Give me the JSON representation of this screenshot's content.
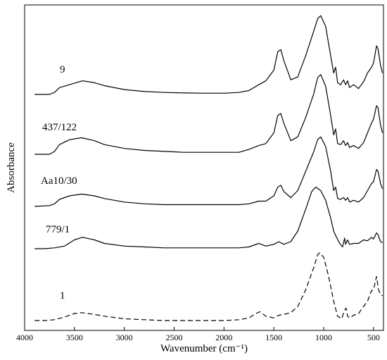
{
  "chart_data": {
    "type": "line",
    "xlabel": "Wavenumber (cm⁻¹)",
    "ylabel": "Absorbance",
    "xlim": [
      4000,
      400
    ],
    "x_reversed": true,
    "x_ticks": [
      4000,
      3500,
      3000,
      2500,
      2000,
      1500,
      1000,
      500
    ],
    "y_ticks_shown": false,
    "grid": false,
    "legend": "none",
    "series": [
      {
        "name": "9",
        "style": "solid",
        "points": [
          [
            3900,
            0.0
          ],
          [
            3750,
            0.0
          ],
          [
            3700,
            0.02
          ],
          [
            3650,
            0.07
          ],
          [
            3550,
            0.1
          ],
          [
            3420,
            0.14
          ],
          [
            3300,
            0.12
          ],
          [
            3200,
            0.09
          ],
          [
            3000,
            0.05
          ],
          [
            2800,
            0.03
          ],
          [
            2600,
            0.02
          ],
          [
            2400,
            0.015
          ],
          [
            2200,
            0.012
          ],
          [
            2000,
            0.012
          ],
          [
            1850,
            0.02
          ],
          [
            1750,
            0.04
          ],
          [
            1650,
            0.1
          ],
          [
            1580,
            0.14
          ],
          [
            1500,
            0.25
          ],
          [
            1460,
            0.44
          ],
          [
            1430,
            0.46
          ],
          [
            1400,
            0.35
          ],
          [
            1330,
            0.15
          ],
          [
            1260,
            0.18
          ],
          [
            1180,
            0.4
          ],
          [
            1100,
            0.65
          ],
          [
            1060,
            0.78
          ],
          [
            1030,
            0.81
          ],
          [
            980,
            0.7
          ],
          [
            930,
            0.4
          ],
          [
            900,
            0.22
          ],
          [
            880,
            0.28
          ],
          [
            860,
            0.12
          ],
          [
            830,
            0.1
          ],
          [
            800,
            0.15
          ],
          [
            780,
            0.1
          ],
          [
            760,
            0.14
          ],
          [
            740,
            0.07
          ],
          [
            700,
            0.1
          ],
          [
            650,
            0.06
          ],
          [
            600,
            0.13
          ],
          [
            560,
            0.22
          ],
          [
            520,
            0.28
          ],
          [
            500,
            0.32
          ],
          [
            470,
            0.5
          ],
          [
            455,
            0.47
          ],
          [
            430,
            0.3
          ],
          [
            410,
            0.22
          ]
        ]
      },
      {
        "name": "437/122",
        "style": "solid",
        "points": [
          [
            3900,
            0.0
          ],
          [
            3750,
            0.0
          ],
          [
            3700,
            0.03
          ],
          [
            3650,
            0.1
          ],
          [
            3550,
            0.15
          ],
          [
            3430,
            0.17
          ],
          [
            3300,
            0.14
          ],
          [
            3200,
            0.1
          ],
          [
            3000,
            0.06
          ],
          [
            2800,
            0.04
          ],
          [
            2600,
            0.03
          ],
          [
            2400,
            0.02
          ],
          [
            2200,
            0.02
          ],
          [
            2000,
            0.02
          ],
          [
            1850,
            0.02
          ],
          [
            1750,
            0.05
          ],
          [
            1650,
            0.09
          ],
          [
            1580,
            0.11
          ],
          [
            1500,
            0.22
          ],
          [
            1460,
            0.4
          ],
          [
            1430,
            0.42
          ],
          [
            1400,
            0.32
          ],
          [
            1330,
            0.14
          ],
          [
            1260,
            0.18
          ],
          [
            1180,
            0.38
          ],
          [
            1100,
            0.62
          ],
          [
            1060,
            0.79
          ],
          [
            1030,
            0.82
          ],
          [
            980,
            0.7
          ],
          [
            930,
            0.4
          ],
          [
            900,
            0.2
          ],
          [
            880,
            0.26
          ],
          [
            860,
            0.11
          ],
          [
            830,
            0.1
          ],
          [
            800,
            0.14
          ],
          [
            780,
            0.09
          ],
          [
            760,
            0.12
          ],
          [
            740,
            0.07
          ],
          [
            700,
            0.09
          ],
          [
            650,
            0.06
          ],
          [
            600,
            0.12
          ],
          [
            560,
            0.22
          ],
          [
            520,
            0.32
          ],
          [
            500,
            0.36
          ],
          [
            470,
            0.5
          ],
          [
            455,
            0.48
          ],
          [
            430,
            0.3
          ],
          [
            410,
            0.22
          ]
        ]
      },
      {
        "name": "Aa10/30",
        "style": "solid",
        "points": [
          [
            3900,
            0.0
          ],
          [
            3750,
            0.01
          ],
          [
            3700,
            0.03
          ],
          [
            3650,
            0.08
          ],
          [
            3550,
            0.12
          ],
          [
            3430,
            0.14
          ],
          [
            3300,
            0.12
          ],
          [
            3200,
            0.09
          ],
          [
            3000,
            0.05
          ],
          [
            2800,
            0.03
          ],
          [
            2600,
            0.02
          ],
          [
            2400,
            0.02
          ],
          [
            2200,
            0.02
          ],
          [
            2000,
            0.02
          ],
          [
            1850,
            0.02
          ],
          [
            1750,
            0.03
          ],
          [
            1650,
            0.06
          ],
          [
            1580,
            0.06
          ],
          [
            1500,
            0.12
          ],
          [
            1460,
            0.22
          ],
          [
            1430,
            0.24
          ],
          [
            1400,
            0.17
          ],
          [
            1330,
            0.1
          ],
          [
            1260,
            0.18
          ],
          [
            1180,
            0.4
          ],
          [
            1100,
            0.62
          ],
          [
            1060,
            0.76
          ],
          [
            1030,
            0.79
          ],
          [
            980,
            0.68
          ],
          [
            930,
            0.4
          ],
          [
            900,
            0.18
          ],
          [
            880,
            0.22
          ],
          [
            860,
            0.09
          ],
          [
            830,
            0.08
          ],
          [
            800,
            0.1
          ],
          [
            780,
            0.07
          ],
          [
            760,
            0.1
          ],
          [
            740,
            0.05
          ],
          [
            700,
            0.07
          ],
          [
            650,
            0.05
          ],
          [
            600,
            0.1
          ],
          [
            560,
            0.18
          ],
          [
            520,
            0.26
          ],
          [
            500,
            0.28
          ],
          [
            470,
            0.42
          ],
          [
            455,
            0.4
          ],
          [
            430,
            0.26
          ],
          [
            410,
            0.2
          ]
        ]
      },
      {
        "name": "779/1",
        "style": "solid",
        "points": [
          [
            3900,
            0.0
          ],
          [
            3800,
            0.0
          ],
          [
            3700,
            0.01
          ],
          [
            3600,
            0.03
          ],
          [
            3500,
            0.1
          ],
          [
            3420,
            0.13
          ],
          [
            3300,
            0.1
          ],
          [
            3200,
            0.06
          ],
          [
            3000,
            0.03
          ],
          [
            2800,
            0.02
          ],
          [
            2600,
            0.01
          ],
          [
            2400,
            0.01
          ],
          [
            2200,
            0.01
          ],
          [
            2000,
            0.01
          ],
          [
            1850,
            0.01
          ],
          [
            1750,
            0.02
          ],
          [
            1650,
            0.06
          ],
          [
            1580,
            0.03
          ],
          [
            1500,
            0.05
          ],
          [
            1450,
            0.08
          ],
          [
            1400,
            0.05
          ],
          [
            1330,
            0.08
          ],
          [
            1260,
            0.2
          ],
          [
            1180,
            0.45
          ],
          [
            1120,
            0.65
          ],
          [
            1080,
            0.7
          ],
          [
            1030,
            0.66
          ],
          [
            980,
            0.55
          ],
          [
            930,
            0.35
          ],
          [
            900,
            0.2
          ],
          [
            880,
            0.15
          ],
          [
            840,
            0.06
          ],
          [
            810,
            0.02
          ],
          [
            790,
            0.12
          ],
          [
            780,
            0.05
          ],
          [
            760,
            0.1
          ],
          [
            740,
            0.05
          ],
          [
            700,
            0.06
          ],
          [
            650,
            0.06
          ],
          [
            600,
            0.1
          ],
          [
            560,
            0.09
          ],
          [
            520,
            0.13
          ],
          [
            500,
            0.11
          ],
          [
            470,
            0.18
          ],
          [
            455,
            0.16
          ],
          [
            430,
            0.08
          ],
          [
            410,
            0.07
          ]
        ]
      },
      {
        "name": "1",
        "style": "dashed",
        "points": [
          [
            3900,
            0.0
          ],
          [
            3800,
            0.0
          ],
          [
            3700,
            0.01
          ],
          [
            3600,
            0.04
          ],
          [
            3500,
            0.08
          ],
          [
            3430,
            0.09
          ],
          [
            3300,
            0.07
          ],
          [
            3200,
            0.05
          ],
          [
            3000,
            0.02
          ],
          [
            2800,
            0.01
          ],
          [
            2600,
            0.0
          ],
          [
            2400,
            0.0
          ],
          [
            2200,
            0.0
          ],
          [
            2000,
            0.0
          ],
          [
            1850,
            0.01
          ],
          [
            1750,
            0.03
          ],
          [
            1680,
            0.08
          ],
          [
            1640,
            0.1
          ],
          [
            1580,
            0.05
          ],
          [
            1500,
            0.03
          ],
          [
            1450,
            0.06
          ],
          [
            1400,
            0.07
          ],
          [
            1330,
            0.09
          ],
          [
            1260,
            0.16
          ],
          [
            1180,
            0.35
          ],
          [
            1100,
            0.6
          ],
          [
            1060,
            0.75
          ],
          [
            1040,
            0.77
          ],
          [
            1000,
            0.72
          ],
          [
            950,
            0.5
          ],
          [
            900,
            0.22
          ],
          [
            860,
            0.05
          ],
          [
            820,
            0.02
          ],
          [
            790,
            0.12
          ],
          [
            775,
            0.14
          ],
          [
            760,
            0.05
          ],
          [
            740,
            0.03
          ],
          [
            700,
            0.06
          ],
          [
            650,
            0.08
          ],
          [
            600,
            0.16
          ],
          [
            560,
            0.22
          ],
          [
            520,
            0.34
          ],
          [
            500,
            0.35
          ],
          [
            470,
            0.5
          ],
          [
            450,
            0.35
          ],
          [
            430,
            0.3
          ],
          [
            410,
            0.28
          ]
        ]
      }
    ]
  }
}
